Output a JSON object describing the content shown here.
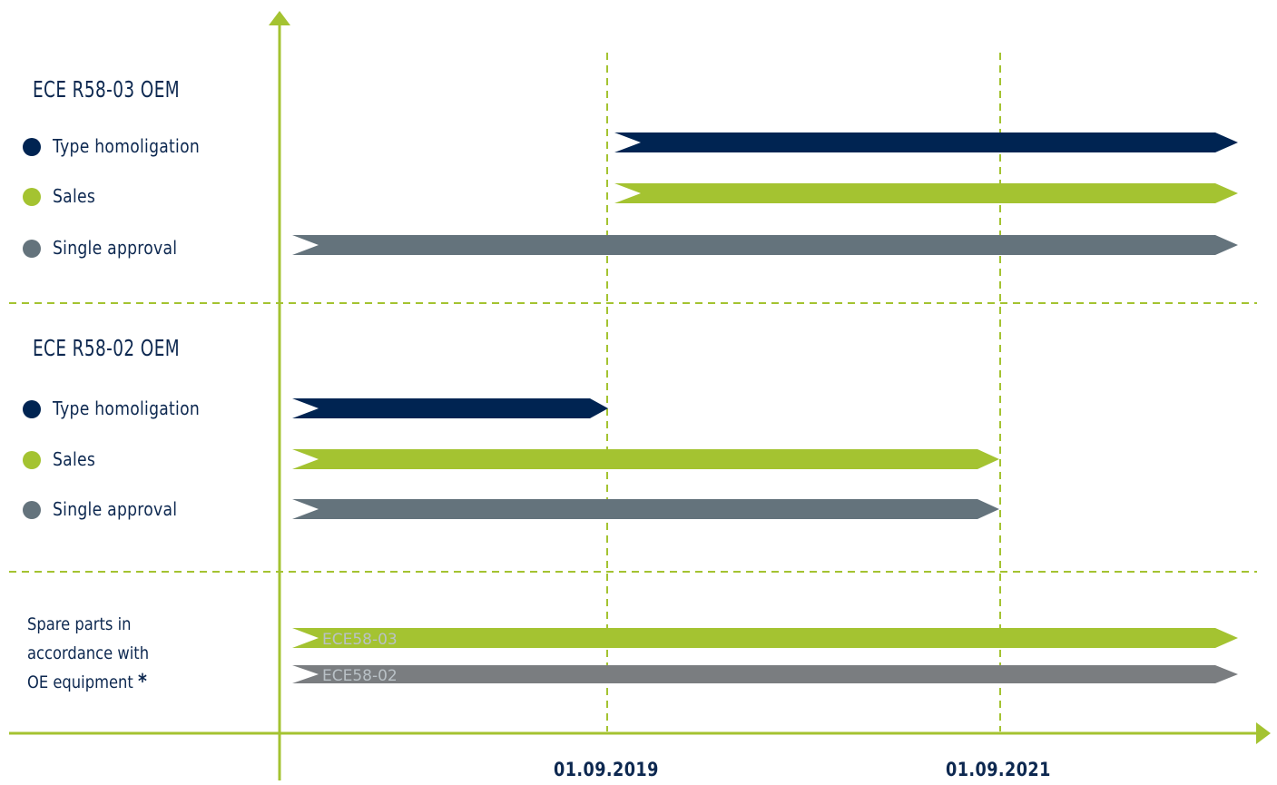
{
  "colors": {
    "navy": "#002452",
    "green": "#a4c331",
    "slate": "#64737c",
    "gray": "#7a7d80",
    "axis": "#a4c331",
    "label": "#0d2850"
  },
  "sections": [
    {
      "title": "ECE R58-03  OEM",
      "rows": [
        {
          "label": "Type homoligation",
          "color": "navy"
        },
        {
          "label": "Sales",
          "color": "green"
        },
        {
          "label": "Single approval",
          "color": "slate"
        }
      ]
    },
    {
      "title": "ECE R58-02  OEM",
      "rows": [
        {
          "label": "Type homoligation",
          "color": "navy"
        },
        {
          "label": "Sales",
          "color": "green"
        },
        {
          "label": "Single approval",
          "color": "slate"
        }
      ]
    }
  ],
  "spare_parts": {
    "label_lines": [
      "Spare parts in",
      "accordance with",
      "OE equipment"
    ],
    "asterisk": "*",
    "bars": [
      {
        "text": "ECE58-03",
        "color": "green"
      },
      {
        "text": "ECE58-02",
        "color": "gray"
      }
    ]
  },
  "milestones": [
    "01.09.2019",
    "01.09.2021"
  ]
}
